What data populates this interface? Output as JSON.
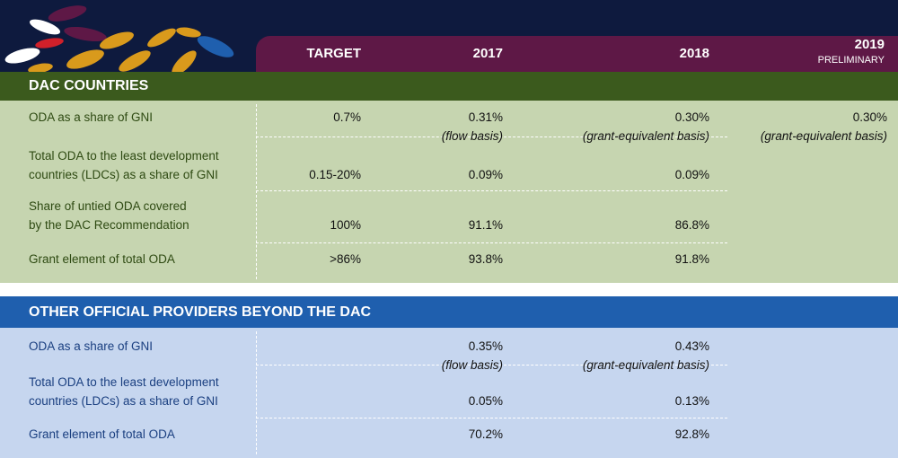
{
  "header": {
    "columns": [
      "TARGET",
      "2017",
      "2018",
      "2019"
    ],
    "subtitle_2019": "PRELIMINARY"
  },
  "sections": [
    {
      "title": "DAC COUNTRIES",
      "rows": [
        {
          "label": [
            "ODA as a share of GNI"
          ],
          "cells": [
            [
              "0.7%"
            ],
            [
              "0.31%",
              "(flow basis)"
            ],
            [
              "0.30%",
              "(grant-equivalent basis)"
            ],
            [
              "0.30%",
              "(grant-equivalent basis)"
            ]
          ]
        },
        {
          "label": [
            "Total ODA to the least development",
            "countries (LDCs) as a share of GNI"
          ],
          "cells": [
            [
              "0.15-20%"
            ],
            [
              "0.09%"
            ],
            [
              "0.09%"
            ],
            null
          ]
        },
        {
          "label": [
            "Share of untied ODA covered",
            "by the DAC Recommendation"
          ],
          "cells": [
            [
              "100%"
            ],
            [
              "91.1%"
            ],
            [
              "86.8%"
            ],
            null
          ]
        },
        {
          "label": [
            "Grant element of total ODA"
          ],
          "cells": [
            [
              ">86%"
            ],
            [
              "93.8%"
            ],
            [
              "91.8%"
            ],
            null
          ]
        }
      ]
    },
    {
      "title": "OTHER OFFICIAL PROVIDERS BEYOND THE DAC",
      "rows": [
        {
          "label": [
            "ODA as a share of GNI"
          ],
          "cells": [
            null,
            [
              "0.35%",
              "(flow basis)"
            ],
            [
              "0.43%",
              "(grant-equivalent basis)"
            ],
            null
          ]
        },
        {
          "label": [
            "Total ODA to the least development",
            "countries (LDCs) as a share of GNI"
          ],
          "cells": [
            null,
            [
              "0.05%"
            ],
            [
              "0.13%"
            ],
            null
          ]
        },
        {
          "label": [
            "Grant element of total ODA"
          ],
          "cells": [
            null,
            [
              "70.2%"
            ],
            [
              "92.8%"
            ],
            null
          ]
        }
      ]
    }
  ]
}
